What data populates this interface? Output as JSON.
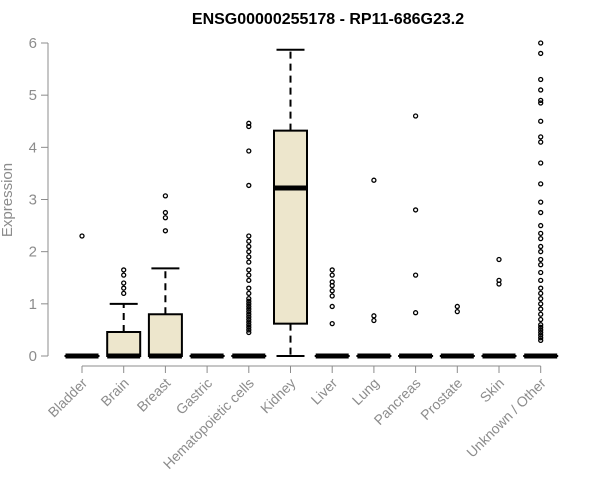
{
  "chart_data": {
    "type": "boxplot",
    "title": "ENSG00000255178 - RP11-686G23.2",
    "xlabel": "",
    "ylabel": "Expression",
    "ylim": [
      0,
      6
    ],
    "yticks": [
      0,
      1,
      2,
      3,
      4,
      5,
      6
    ],
    "categories": [
      "Bladder",
      "Brain",
      "Breast",
      "Gastric",
      "Hematopoietic cells",
      "Kidney",
      "Liver",
      "Lung",
      "Pancreas",
      "Prostate",
      "Skin",
      "Unknown / Other"
    ],
    "box_color": "#ede6cc",
    "series": [
      {
        "name": "Bladder",
        "q1": 0,
        "median": 0,
        "q3": 0,
        "whisker_low": 0,
        "whisker_high": 0,
        "outliers": [
          2.3
        ]
      },
      {
        "name": "Brain",
        "q1": 0,
        "median": 0,
        "q3": 0.46,
        "whisker_low": 0,
        "whisker_high": 1.0,
        "outliers": [
          1.2,
          1.3,
          1.4,
          1.55,
          1.65
        ]
      },
      {
        "name": "Breast",
        "q1": 0,
        "median": 0,
        "q3": 0.8,
        "whisker_low": 0,
        "whisker_high": 1.68,
        "outliers": [
          2.4,
          2.65,
          2.75,
          3.07
        ]
      },
      {
        "name": "Gastric",
        "q1": 0,
        "median": 0,
        "q3": 0,
        "whisker_low": 0,
        "whisker_high": 0,
        "outliers": []
      },
      {
        "name": "Hematopoietic cells",
        "q1": 0,
        "median": 0,
        "q3": 0,
        "whisker_low": 0,
        "whisker_high": 0,
        "outliers": [
          0.45,
          0.5,
          0.55,
          0.6,
          0.65,
          0.7,
          0.75,
          0.8,
          0.85,
          0.9,
          0.95,
          1.0,
          1.05,
          1.1,
          1.2,
          1.3,
          1.45,
          1.55,
          1.65,
          1.8,
          1.9,
          2.0,
          2.1,
          2.2,
          2.3,
          3.27,
          3.93,
          4.4,
          4.46
        ]
      },
      {
        "name": "Kidney",
        "q1": 0.62,
        "median": 3.22,
        "q3": 4.32,
        "whisker_low": 0,
        "whisker_high": 5.87,
        "outliers": []
      },
      {
        "name": "Liver",
        "q1": 0,
        "median": 0,
        "q3": 0,
        "whisker_low": 0,
        "whisker_high": 0,
        "outliers": [
          0.62,
          0.95,
          1.15,
          1.25,
          1.35,
          1.42,
          1.55,
          1.65
        ]
      },
      {
        "name": "Lung",
        "q1": 0,
        "median": 0,
        "q3": 0,
        "whisker_low": 0,
        "whisker_high": 0,
        "outliers": [
          0.68,
          0.77,
          3.37
        ]
      },
      {
        "name": "Pancreas",
        "q1": 0,
        "median": 0,
        "q3": 0,
        "whisker_low": 0,
        "whisker_high": 0,
        "outliers": [
          0.83,
          1.55,
          2.8,
          4.6
        ]
      },
      {
        "name": "Prostate",
        "q1": 0,
        "median": 0,
        "q3": 0,
        "whisker_low": 0,
        "whisker_high": 0,
        "outliers": [
          0.85,
          0.95
        ]
      },
      {
        "name": "Skin",
        "q1": 0,
        "median": 0,
        "q3": 0,
        "whisker_low": 0,
        "whisker_high": 0,
        "outliers": [
          1.38,
          1.45,
          1.85
        ]
      },
      {
        "name": "Unknown / Other",
        "q1": 0,
        "median": 0,
        "q3": 0,
        "whisker_low": 0,
        "whisker_high": 0,
        "outliers": [
          0.3,
          0.35,
          0.4,
          0.45,
          0.5,
          0.55,
          0.6,
          0.7,
          0.8,
          0.9,
          1.0,
          1.1,
          1.2,
          1.3,
          1.45,
          1.6,
          1.75,
          1.85,
          2.0,
          2.1,
          2.25,
          2.35,
          2.5,
          2.75,
          2.95,
          3.3,
          3.7,
          4.1,
          4.2,
          4.5,
          4.85,
          4.9,
          5.1,
          5.3,
          5.8,
          6.0
        ]
      }
    ]
  }
}
